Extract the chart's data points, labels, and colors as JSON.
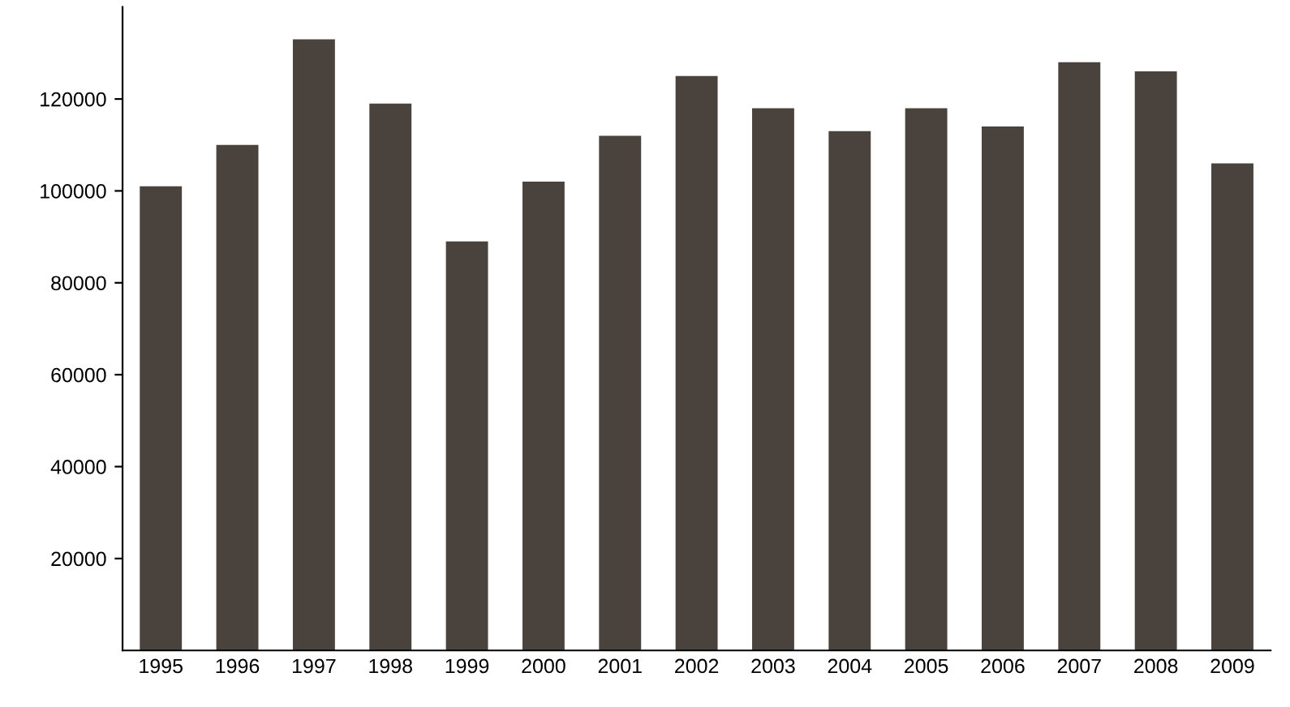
{
  "chart_data": {
    "type": "bar",
    "categories": [
      "1995",
      "1996",
      "1997",
      "1998",
      "1999",
      "2000",
      "2001",
      "2002",
      "2003",
      "2004",
      "2005",
      "2006",
      "2007",
      "2008",
      "2009"
    ],
    "values": [
      101000,
      110000,
      133000,
      119000,
      89000,
      102000,
      112000,
      125000,
      118000,
      113000,
      118000,
      114000,
      128000,
      126000,
      106000
    ],
    "color": "#4a423c",
    "ylim": [
      0,
      140000
    ],
    "yticks": [
      20000,
      40000,
      60000,
      80000,
      100000,
      120000
    ],
    "grid": false
  }
}
